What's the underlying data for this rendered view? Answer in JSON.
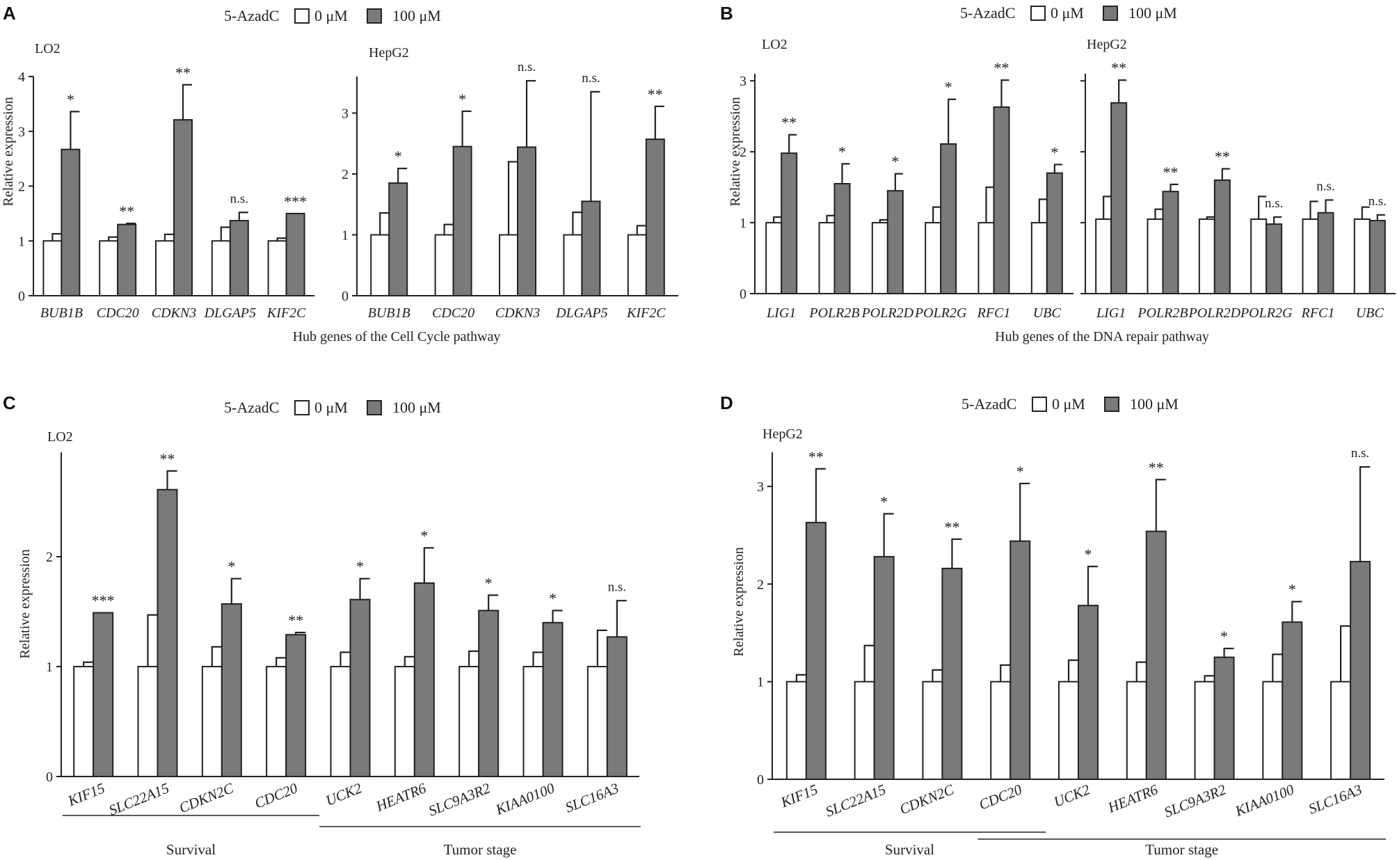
{
  "colors": {
    "control": "#ffffff",
    "treated": "#7a7a7a",
    "ink": "#222222"
  },
  "chart_data": [
    {
      "id": "A",
      "panel_label": "A",
      "type": "bar",
      "legend": {
        "title": "5-AzadC",
        "labels": [
          "0 μM",
          "100 μM"
        ]
      },
      "xlabel": "Hub genes of the Cell Cycle pathway",
      "ylabel": "Relative expression",
      "subplots": [
        {
          "title": "LO2",
          "ylim": [
            0,
            4
          ],
          "yticks": [
            0,
            1,
            2,
            3,
            4
          ],
          "ytick_labels": [
            "0",
            "1",
            "2",
            "3",
            "4"
          ],
          "categories": [
            "BUB1B",
            "CDC20",
            "CDKN3",
            "DLGAP5",
            "KIF2C"
          ],
          "series": [
            {
              "name": "0 μM",
              "values": [
                1,
                1,
                1,
                1,
                1
              ],
              "errors": [
                0.13,
                0.07,
                0.12,
                0.25,
                0.05
              ]
            },
            {
              "name": "100 μM",
              "values": [
                2.67,
                1.3,
                3.21,
                1.37,
                1.5
              ],
              "errors": [
                0.69,
                0.02,
                0.64,
                0.15,
                0.0
              ]
            }
          ],
          "significance": [
            "*",
            "**",
            "**",
            "n.s.",
            "***"
          ]
        },
        {
          "title": "HepG2",
          "ylim": [
            0,
            3.6
          ],
          "yticks": [
            0,
            1,
            2,
            3
          ],
          "ytick_labels": [
            "0",
            "1",
            "2",
            "3"
          ],
          "categories": [
            "BUB1B",
            "CDC20",
            "CDKN3",
            "DLGAP5",
            "KIF2C"
          ],
          "series": [
            {
              "name": "0 μM",
              "values": [
                1,
                1,
                1,
                1,
                1
              ],
              "errors": [
                0.36,
                0.17,
                1.2,
                0.37,
                0.15
              ]
            },
            {
              "name": "100 μM",
              "values": [
                1.85,
                2.45,
                2.44,
                1.55,
                2.57
              ],
              "errors": [
                0.24,
                0.58,
                1.09,
                1.8,
                0.54
              ]
            }
          ],
          "significance": [
            "*",
            "*",
            "n.s.",
            "n.s.",
            "**"
          ]
        }
      ]
    },
    {
      "id": "B",
      "panel_label": "B",
      "type": "bar",
      "legend": {
        "title": "5-AzadC",
        "labels": [
          "0 μM",
          "100 μM"
        ]
      },
      "xlabel": "Hub genes of the DNA repair pathway",
      "ylabel": "Relative expression",
      "subplots": [
        {
          "title": "LO2",
          "ylim": [
            0,
            3.1
          ],
          "yticks": [
            0,
            1,
            2,
            3
          ],
          "ytick_labels": [
            "0",
            "1",
            "2",
            "3"
          ],
          "categories": [
            "LIG1",
            "POLR2B",
            "POLR2D",
            "POLR2G",
            "RFC1",
            "UBC"
          ],
          "series": [
            {
              "name": "0 μM",
              "values": [
                1,
                1,
                1,
                1,
                1,
                1
              ],
              "errors": [
                0.08,
                0.1,
                0.04,
                0.22,
                0.5,
                0.33
              ]
            },
            {
              "name": "100 μM",
              "values": [
                1.98,
                1.55,
                1.45,
                2.11,
                2.63,
                1.7
              ],
              "errors": [
                0.26,
                0.28,
                0.24,
                0.63,
                0.38,
                0.12
              ]
            }
          ],
          "significance": [
            "**",
            "*",
            "*",
            "*",
            "**",
            "*"
          ]
        },
        {
          "title": "HepG2",
          "ylim": [
            0,
            3.1
          ],
          "yticks": [
            0,
            1,
            2,
            3
          ],
          "ytick_labels": [
            "",
            "",
            "",
            ""
          ],
          "categories": [
            "LIG1",
            "POLR2B",
            "POLR2D",
            "POLR2G",
            "RFC1",
            "UBC"
          ],
          "series": [
            {
              "name": "0 μM",
              "values": [
                1.05,
                1.05,
                1.05,
                1.05,
                1.05,
                1.05
              ],
              "errors": [
                0.32,
                0.14,
                0.03,
                0.32,
                0.25,
                0.17
              ]
            },
            {
              "name": "100 μM",
              "values": [
                2.69,
                1.44,
                1.6,
                0.98,
                1.14,
                1.03
              ],
              "errors": [
                0.32,
                0.1,
                0.16,
                0.1,
                0.18,
                0.08
              ]
            }
          ],
          "significance": [
            "**",
            "**",
            "**",
            "n.s.",
            "n.s.",
            "n.s."
          ]
        }
      ]
    },
    {
      "id": "C",
      "panel_label": "C",
      "type": "bar",
      "legend": {
        "title": "5-AzadC",
        "labels": [
          "0 μM",
          "100 μM"
        ]
      },
      "ylabel": "Relative expression",
      "groups": [
        {
          "label": "Survival",
          "from": 0,
          "to": 4
        },
        {
          "label": "Tumor stage",
          "from": 4,
          "to": 9
        }
      ],
      "subplots": [
        {
          "title": "LO2",
          "ylim": [
            0,
            2.95
          ],
          "yticks": [
            0,
            1,
            2
          ],
          "ytick_labels": [
            "0",
            "1",
            "2"
          ],
          "categories": [
            "KIF15",
            "SLC22A15",
            "CDKN2C",
            "CDC20",
            "UCK2",
            "HEATR6",
            "SLC9A3R2",
            "KIAA0100",
            "SLC16A3"
          ],
          "series": [
            {
              "name": "0 μM",
              "values": [
                1,
                1,
                1,
                1,
                1,
                1,
                1,
                1,
                1
              ],
              "errors": [
                0.04,
                0.47,
                0.18,
                0.08,
                0.13,
                0.09,
                0.14,
                0.13,
                0.33
              ]
            },
            {
              "name": "100 μM",
              "values": [
                1.49,
                2.61,
                1.57,
                1.29,
                1.61,
                1.76,
                1.51,
                1.4,
                1.27
              ],
              "errors": [
                0.0,
                0.17,
                0.23,
                0.02,
                0.19,
                0.32,
                0.14,
                0.11,
                0.33
              ]
            }
          ],
          "significance": [
            "***",
            "**",
            "*",
            "**",
            "*",
            "*",
            "*",
            "*",
            "n.s."
          ]
        }
      ]
    },
    {
      "id": "D",
      "panel_label": "D",
      "type": "bar",
      "legend": {
        "title": "5-AzadC",
        "labels": [
          "0 μM",
          "100 μM"
        ]
      },
      "ylabel": "Relative expression",
      "groups": [
        {
          "label": "Survival",
          "from": 0,
          "to": 4
        },
        {
          "label": "Tumor stage",
          "from": 3,
          "to": 9
        }
      ],
      "subplots": [
        {
          "title": "HepG2",
          "ylim": [
            0,
            3.35
          ],
          "yticks": [
            0,
            1,
            2,
            3
          ],
          "ytick_labels": [
            "0",
            "1",
            "2",
            "3"
          ],
          "categories": [
            "KIF15",
            "SLC22A15",
            "CDKN2C",
            "CDC20",
            "UCK2",
            "HEATR6",
            "SLC9A3R2",
            "KIAA0100",
            "SLC16A3"
          ],
          "series": [
            {
              "name": "0 μM",
              "values": [
                1,
                1,
                1,
                1,
                1,
                1,
                1,
                1,
                1
              ],
              "errors": [
                0.07,
                0.37,
                0.12,
                0.17,
                0.22,
                0.2,
                0.06,
                0.28,
                0.57
              ]
            },
            {
              "name": "100 μM",
              "values": [
                2.63,
                2.28,
                2.16,
                2.44,
                1.78,
                2.54,
                1.25,
                1.61,
                2.23
              ],
              "errors": [
                0.55,
                0.44,
                0.3,
                0.59,
                0.4,
                0.53,
                0.09,
                0.21,
                0.97
              ]
            }
          ],
          "significance": [
            "**",
            "*",
            "**",
            "*",
            "*",
            "**",
            "*",
            "*",
            "n.s."
          ]
        }
      ]
    }
  ]
}
